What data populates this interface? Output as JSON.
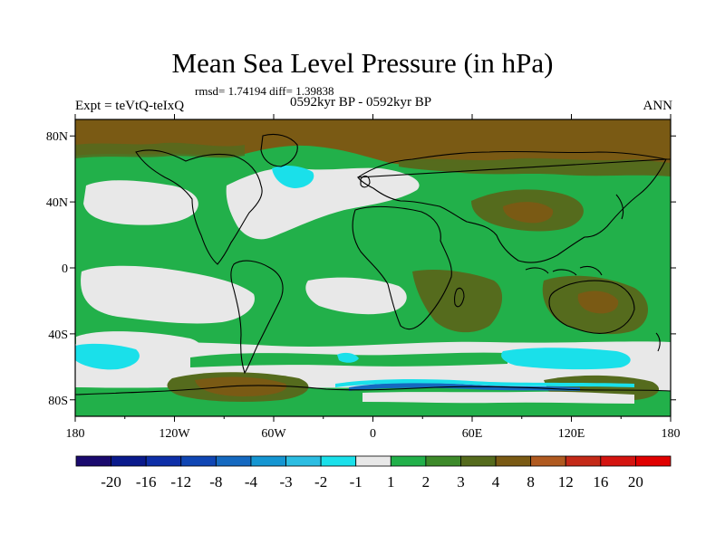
{
  "title": "Mean Sea Level Pressure (in hPa)",
  "stats": "rmsd= 1.74194 diff= 1.39838",
  "left_label": "Expt = teVtQ-teIxQ",
  "center_label": "0592kyr BP - 0592kyr BP",
  "right_label": "ANN",
  "map": {
    "projection": "cylindrical equidistant",
    "lon_range": [
      -180,
      180
    ],
    "lat_range": [
      -90,
      90
    ],
    "x_ticks": [
      "180",
      "120W",
      "60W",
      "0",
      "60E",
      "120E",
      "180"
    ],
    "y_ticks": [
      "80N",
      "40N",
      "0",
      "40S",
      "80S"
    ]
  },
  "colorbar": {
    "labels": [
      "-20",
      "-16",
      "-12",
      "-8",
      "-4",
      "-3",
      "-2",
      "-1",
      "1",
      "2",
      "3",
      "4",
      "8",
      "12",
      "16",
      "20"
    ],
    "colors": [
      "#1a0a6e",
      "#0a1a8c",
      "#0e2fa8",
      "#1046b4",
      "#1569c0",
      "#1596d2",
      "#2cbde2",
      "#1ae0ea",
      "#e8e8e8",
      "#22b04a",
      "#3d8a2a",
      "#556b1d",
      "#7a5a14",
      "#b05a20",
      "#c42a18",
      "#d41410",
      "#e00000"
    ]
  },
  "legend_colors": {
    "gray": "#e8e8e8",
    "green": "#22b04a",
    "olive": "#556b1d",
    "brown": "#7a5a14",
    "cyan": "#1ae0ea",
    "lightblue": "#2cbde2",
    "blue": "#1569c0"
  }
}
